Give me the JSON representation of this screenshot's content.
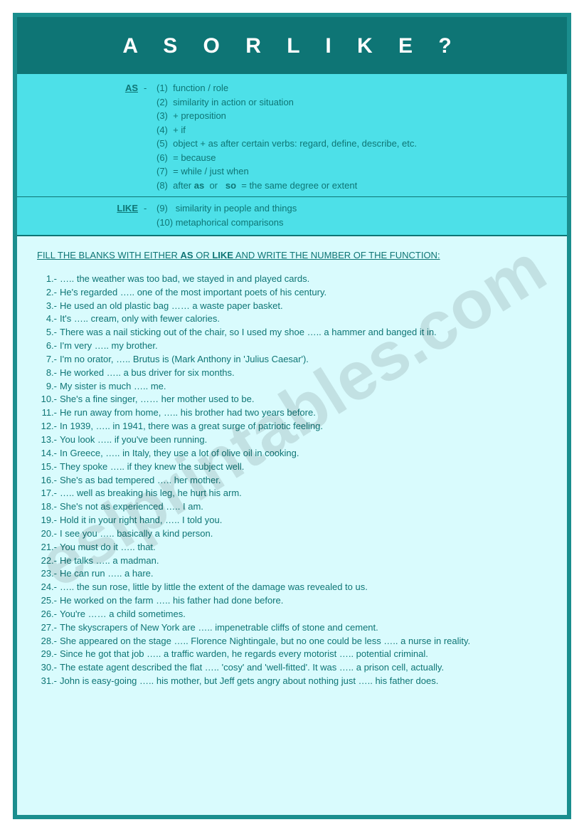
{
  "title": "A S   O R   L I K E ?",
  "watermark": "eslprintables.com",
  "rules": {
    "as": {
      "label": "AS",
      "dash": "-",
      "lines": [
        "(1)  function / role",
        "(2)  similarity in action or situation",
        "(3)  + preposition",
        "(4)  + if",
        "(5)  object + as after certain verbs: regard, define, describe, etc.",
        "(6)  = because",
        "(7)  = while / just when",
        "(8)  after as  or   so  = the same degree or extent"
      ]
    },
    "like": {
      "label": "LIKE",
      "dash": "-",
      "lines": [
        "(9)   similarity in people and things",
        "(10) metaphorical comparisons"
      ]
    }
  },
  "instructions": {
    "pre": "FILL THE BLANKS WITH EITHER ",
    "w1": "AS",
    "mid": " OR ",
    "w2": "LIKE",
    "post": " AND WRITE THE NUMBER OF THE FUNCTION:"
  },
  "questions": [
    {
      "n": " 1.-",
      "t": "….. the weather was too bad, we stayed in and played cards."
    },
    {
      "n": " 2.-",
      "t": "He's regarded ….. one of the most important poets of his century."
    },
    {
      "n": " 3.-",
      "t": "He used an old plastic bag …… a waste paper basket."
    },
    {
      "n": " 4.-",
      "t": "It's ….. cream, only with fewer calories."
    },
    {
      "n": " 5.-",
      "t": "There was a nail sticking out of the chair, so I used my shoe ….. a hammer and banged it in."
    },
    {
      "n": " 6.-",
      "t": "I'm very ….. my brother."
    },
    {
      "n": " 7.-",
      "t": "I'm no orator, ….. Brutus is (Mark Anthony in 'Julius Caesar')."
    },
    {
      "n": " 8.-",
      "t": "He worked ….. a bus driver for six months."
    },
    {
      "n": " 9.-",
      "t": "My sister is much ….. me."
    },
    {
      "n": "10.-",
      "t": "She's a fine singer, …… her mother used to be."
    },
    {
      "n": "11.-",
      "t": "He run away from home, ….. his brother had two years before."
    },
    {
      "n": "12.-",
      "t": "In 1939, ….. in 1941, there was a great surge of patriotic feeling."
    },
    {
      "n": "13.-",
      "t": "You look ….. if you've been running."
    },
    {
      "n": "14.-",
      "t": "In Greece, ….. in Italy, they use a lot of olive oil in cooking."
    },
    {
      "n": "15.-",
      "t": "They spoke ….. if they knew the subject well."
    },
    {
      "n": "16.-",
      "t": "She's as bad tempered ….. her mother."
    },
    {
      "n": "17.-",
      "t": "….. well as breaking his leg, he hurt his arm."
    },
    {
      "n": "18.-",
      "t": "She's not as experienced ….. I am."
    },
    {
      "n": "19.-",
      "t": "Hold it in your right hand, ….. I told you."
    },
    {
      "n": "20.-",
      "t": "I see you ….. basically a kind person."
    },
    {
      "n": "21.-",
      "t": "You must do it ….. that."
    },
    {
      "n": "22.-",
      "t": "He talks ….. a madman."
    },
    {
      "n": "23.-",
      "t": "He can run ….. a hare."
    },
    {
      "n": "24.-",
      "t": "….. the sun rose, little by little the extent of the damage was revealed to us."
    },
    {
      "n": "25.-",
      "t": "He worked on the farm ….. his father had done before."
    },
    {
      "n": "26.-",
      "t": "You're …… a child sometimes."
    },
    {
      "n": "27.-",
      "t": "The skyscrapers of New York are ….. impenetrable cliffs of stone and cement."
    },
    {
      "n": "28.-",
      "t": "She appeared on the stage ….. Florence Nightingale, but no one could be less ….. a nurse in reality."
    },
    {
      "n": "29.-",
      "t": "Since he got that job ….. a traffic warden, he regards every motorist ….. potential criminal."
    },
    {
      "n": "30.-",
      "t": "The estate agent described the flat ….. 'cosy' and 'well-fitted'. It was ….. a prison cell, actually."
    },
    {
      "n": "31.-",
      "t": "John is easy-going ….. his mother, but Jeff gets angry about nothing just ….. his father does."
    }
  ]
}
